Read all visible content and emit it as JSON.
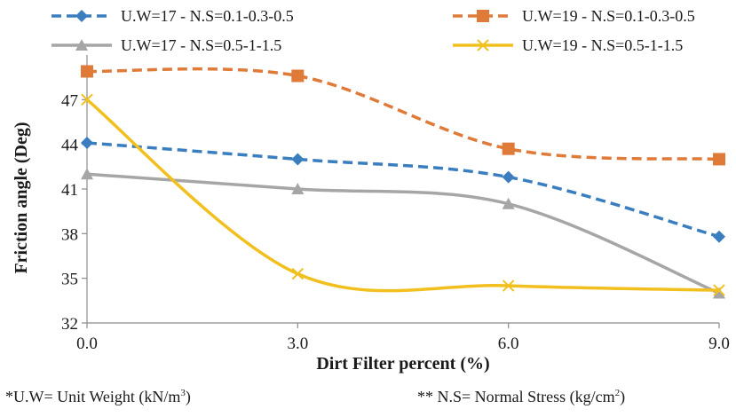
{
  "chart_data": {
    "type": "line",
    "title": "",
    "xlabel": "Dirt Filter percent (%)",
    "ylabel": "Friction angle (Deg)",
    "categories": [
      "0.0",
      "3.0",
      "6.0",
      "9.0"
    ],
    "x": [
      0,
      3,
      6,
      9
    ],
    "ylim": [
      32,
      50
    ],
    "yticks": [
      32,
      35,
      38,
      41,
      44,
      47
    ],
    "grid": false,
    "legend_position": "top",
    "series": [
      {
        "name": "U.W=17 - N.S=0.1-0.3-0.5",
        "values": [
          44.1,
          43.0,
          41.8,
          37.8
        ],
        "color": "#3a7ebf",
        "dash": "dashed",
        "marker": "diamond"
      },
      {
        "name": "U.W=19 - N.S=0.1-0.3-0.5",
        "values": [
          48.9,
          48.6,
          43.7,
          43.0
        ],
        "color": "#e07a38",
        "dash": "dashed",
        "marker": "square"
      },
      {
        "name": "U.W=17 - N.S=0.5-1-1.5",
        "values": [
          42.0,
          41.0,
          40.0,
          34.0
        ],
        "color": "#a6a6a6",
        "dash": "solid",
        "marker": "triangle"
      },
      {
        "name": "U.W=19 - N.S=0.5-1-1.5",
        "values": [
          47.0,
          35.3,
          34.5,
          34.2
        ],
        "color": "#f2c01e",
        "dash": "solid",
        "marker": "x"
      }
    ]
  },
  "notes": {
    "unit_weight_prefix": "*U.W= Unit Weight (kN/m",
    "unit_weight_sup": "3",
    "unit_weight_suffix": ")",
    "normal_stress_prefix": "** N.S= Normal Stress (kg/cm",
    "normal_stress_sup": "2",
    "normal_stress_suffix": ")"
  }
}
